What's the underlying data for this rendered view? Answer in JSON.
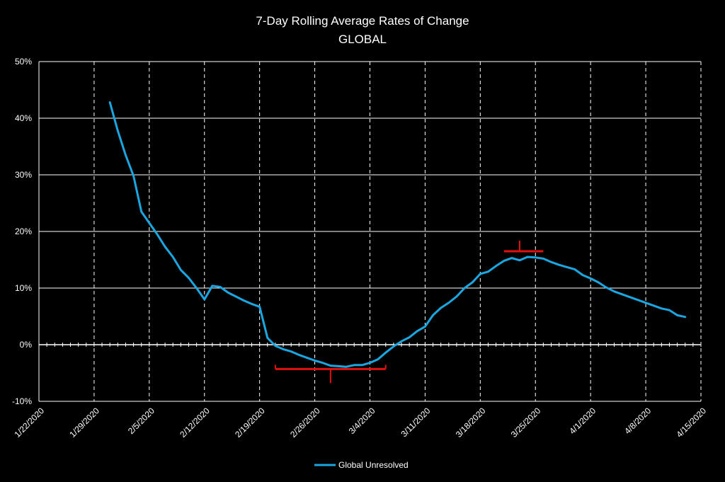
{
  "chart_data": {
    "type": "line",
    "title": "7-Day Rolling Average Rates of Change",
    "subtitle": "GLOBAL",
    "xlabel": "",
    "ylabel": "",
    "x_ticks": [
      "1/22/2020",
      "1/29/2020",
      "2/5/2020",
      "2/12/2020",
      "2/19/2020",
      "2/26/2020",
      "3/4/2020",
      "3/11/2020",
      "3/18/2020",
      "3/25/2020",
      "4/1/2020",
      "4/8/2020",
      "4/15/2020"
    ],
    "y_ticks": [
      "-10%",
      "0%",
      "10%",
      "20%",
      "30%",
      "40%",
      "50%"
    ],
    "ylim": [
      -10,
      50
    ],
    "xlim": [
      "1/22/2020",
      "4/15/2020"
    ],
    "grid": {
      "horizontal": "solid",
      "vertical": "dashed"
    },
    "legend_position": "bottom",
    "series": [
      {
        "name": "Global Unresolved",
        "color": "#1aa6e0",
        "x": [
          "1/31/2020",
          "2/1/2020",
          "2/2/2020",
          "2/3/2020",
          "2/4/2020",
          "2/5/2020",
          "2/6/2020",
          "2/7/2020",
          "2/8/2020",
          "2/9/2020",
          "2/10/2020",
          "2/11/2020",
          "2/12/2020",
          "2/13/2020",
          "2/14/2020",
          "2/15/2020",
          "2/16/2020",
          "2/17/2020",
          "2/18/2020",
          "2/19/2020",
          "2/20/2020",
          "2/21/2020",
          "2/22/2020",
          "2/23/2020",
          "2/24/2020",
          "2/25/2020",
          "2/26/2020",
          "2/27/2020",
          "2/28/2020",
          "2/29/2020",
          "3/1/2020",
          "3/2/2020",
          "3/3/2020",
          "3/4/2020",
          "3/5/2020",
          "3/6/2020",
          "3/7/2020",
          "3/8/2020",
          "3/9/2020",
          "3/10/2020",
          "3/11/2020",
          "3/12/2020",
          "3/13/2020",
          "3/14/2020",
          "3/15/2020",
          "3/16/2020",
          "3/17/2020",
          "3/18/2020",
          "3/19/2020",
          "3/20/2020",
          "3/21/2020",
          "3/22/2020",
          "3/23/2020",
          "3/24/2020",
          "3/25/2020",
          "3/26/2020",
          "3/27/2020",
          "3/28/2020",
          "3/29/2020",
          "3/30/2020",
          "3/31/2020",
          "4/1/2020",
          "4/2/2020",
          "4/3/2020",
          "4/4/2020",
          "4/5/2020",
          "4/6/2020",
          "4/7/2020",
          "4/8/2020",
          "4/9/2020",
          "4/10/2020",
          "4/11/2020",
          "4/12/2020",
          "4/13/2020"
        ],
        "values": [
          42.8,
          37.8,
          33.5,
          29.8,
          23.5,
          21.5,
          19.5,
          17.3,
          15.5,
          13.2,
          11.8,
          10.0,
          8.0,
          10.4,
          10.2,
          9.2,
          8.5,
          7.8,
          7.2,
          6.7,
          1.2,
          -0.2,
          -0.8,
          -1.2,
          -1.8,
          -2.3,
          -2.8,
          -3.2,
          -3.7,
          -3.8,
          -3.9,
          -3.6,
          -3.6,
          -3.2,
          -2.6,
          -1.4,
          -0.3,
          0.6,
          1.3,
          2.4,
          3.2,
          5.2,
          6.5,
          7.4,
          8.5,
          10.0,
          11.0,
          12.5,
          12.9,
          13.9,
          14.8,
          15.3,
          14.9,
          15.5,
          15.4,
          15.2,
          14.6,
          14.1,
          13.7,
          13.3,
          12.3,
          11.7,
          11.0,
          10.1,
          9.4,
          8.9,
          8.4,
          7.9,
          7.4,
          6.9,
          6.4,
          6.1,
          5.2,
          4.9
        ]
      }
    ]
  }
}
